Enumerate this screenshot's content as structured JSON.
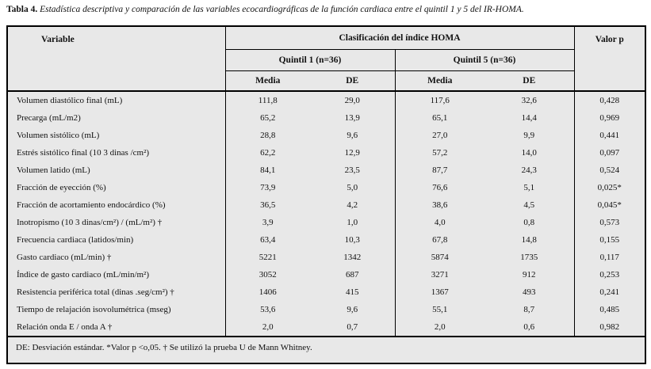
{
  "caption": {
    "label": "Tabla 4.",
    "text": "Estadística descriptiva y comparación de las variables ecocardiográficas de la función cardiaca entre el quintil 1 y 5 del IR-HOMA."
  },
  "table": {
    "headers": {
      "variable": "Variable",
      "homa": "Clasificación del índice HOMA",
      "valor_p": "Valor p",
      "quintil1": "Quintil 1 (n=36)",
      "quintil5": "Quintil 5 (n=36)",
      "media": "Media",
      "de": "DE"
    },
    "rows": [
      {
        "variable": "Volumen diastólico final (mL)",
        "q1_media": "111,8",
        "q1_de": "29,0",
        "q5_media": "117,6",
        "q5_de": "32,6",
        "p": "0,428"
      },
      {
        "variable": "Precarga (mL/m2)",
        "q1_media": "65,2",
        "q1_de": "13,9",
        "q5_media": "65,1",
        "q5_de": "14,4",
        "p": "0,969"
      },
      {
        "variable": "Volumen sistólico (mL)",
        "q1_media": "28,8",
        "q1_de": "9,6",
        "q5_media": "27,0",
        "q5_de": "9,9",
        "p": "0,441"
      },
      {
        "variable": "Estrés sistólico final (10 3 dinas /cm²)",
        "q1_media": "62,2",
        "q1_de": "12,9",
        "q5_media": "57,2",
        "q5_de": "14,0",
        "p": "0,097"
      },
      {
        "variable": "Volumen latido (mL)",
        "q1_media": "84,1",
        "q1_de": "23,5",
        "q5_media": "87,7",
        "q5_de": "24,3",
        "p": "0,524"
      },
      {
        "variable": "Fracción de eyección (%)",
        "q1_media": "73,9",
        "q1_de": "5,0",
        "q5_media": "76,6",
        "q5_de": "5,1",
        "p": "0,025*"
      },
      {
        "variable": "Fracción de acortamiento  endocárdico (%)",
        "q1_media": "36,5",
        "q1_de": "4,2",
        "q5_media": "38,6",
        "q5_de": "4,5",
        "p": "0,045*"
      },
      {
        "variable": "Inotropismo (10 3 dinas/cm²) / (mL/m²) †",
        "q1_media": "3,9",
        "q1_de": "1,0",
        "q5_media": "4,0",
        "q5_de": "0,8",
        "p": "0,573"
      },
      {
        "variable": "Frecuencia cardiaca (latidos/min)",
        "q1_media": "63,4",
        "q1_de": "10,3",
        "q5_media": "67,8",
        "q5_de": "14,8",
        "p": "0,155"
      },
      {
        "variable": "Gasto cardiaco (mL/min) †",
        "q1_media": "5221",
        "q1_de": "1342",
        "q5_media": "5874",
        "q5_de": "1735",
        "p": "0,117"
      },
      {
        "variable": "Índice de gasto cardiaco (mL/min/m²)",
        "q1_media": "3052",
        "q1_de": "687",
        "q5_media": "3271",
        "q5_de": "912",
        "p": "0,253"
      },
      {
        "variable": "Resistencia periférica total (dinas .seg/cm²) †",
        "q1_media": "1406",
        "q1_de": "415",
        "q5_media": "1367",
        "q5_de": "493",
        "p": "0,241"
      },
      {
        "variable": "Tiempo de relajación isovolumétrica (mseg)",
        "q1_media": "53,6",
        "q1_de": "9,6",
        "q5_media": "55,1",
        "q5_de": "8,7",
        "p": "0,485"
      },
      {
        "variable": "Relación onda E / onda A †",
        "q1_media": "2,0",
        "q1_de": "0,7",
        "q5_media": "2,0",
        "q5_de": "0,6",
        "p": "0,982"
      }
    ],
    "footnote": "DE: Desviación estándar. *Valor p <o,05. † Se utilizó la prueba U de Mann Whitney."
  },
  "colors": {
    "table_background": "#e8e8e8",
    "border": "#000000",
    "text": "#111111",
    "page_background": "#ffffff"
  }
}
